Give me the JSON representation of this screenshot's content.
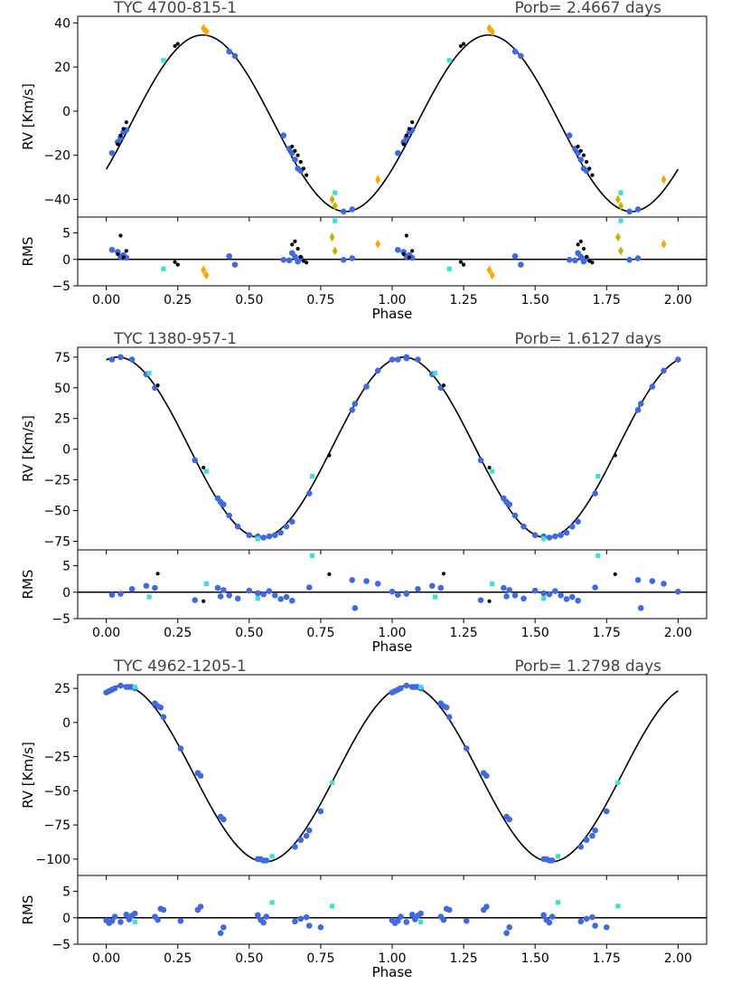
{
  "chart_data": [
    {
      "type": "scatter",
      "title": "TYC 4700-815-1",
      "period_label": "Porb= 2.4667 days",
      "xlabel": "Phase",
      "ylabel": "RV [Km/s]",
      "residual_ylabel": "RMS",
      "xlim": [
        -0.1,
        2.1
      ],
      "ylim": [
        -48,
        43
      ],
      "residual_ylim": [
        -5,
        8
      ],
      "xticks": [
        0.0,
        0.25,
        0.5,
        0.75,
        1.0,
        1.25,
        1.5,
        1.75,
        2.0
      ],
      "xtick_labels": [
        "0.00",
        "0.25",
        "0.50",
        "0.75",
        "1.00",
        "1.25",
        "1.50",
        "1.75",
        "2.00"
      ],
      "yticks": [
        40,
        20,
        0,
        -20,
        -40
      ],
      "ytick_labels": [
        "40",
        "20",
        "0",
        "−20",
        "−40"
      ],
      "residual_yticks": [
        5,
        0,
        -5
      ],
      "residual_ytick_labels": [
        "5",
        "0",
        "−5"
      ],
      "model": {
        "gamma": -5.5,
        "amplitude": 40,
        "phase_of_max": 0.337
      },
      "series": [
        {
          "name": "blue",
          "color": "#4169e1",
          "marker": "circle",
          "x": [
            0.02,
            0.04,
            0.05,
            0.06,
            0.07,
            0.43,
            0.45,
            0.62,
            0.64,
            0.65,
            0.66,
            0.67,
            0.68,
            0.83,
            0.86
          ],
          "y": [
            -19,
            -14,
            -12,
            -9.5,
            -8.5,
            27,
            25,
            -11,
            -17,
            -19,
            -22,
            -26,
            -27,
            -45.5,
            -44.5
          ]
        },
        {
          "name": "black",
          "color": "#000000",
          "marker": "dot",
          "x": [
            0.04,
            0.05,
            0.06,
            0.07,
            0.24,
            0.25,
            0.65,
            0.66,
            0.67,
            0.68,
            0.69,
            0.7
          ],
          "y": [
            -15,
            -11,
            -8,
            -5,
            29.5,
            30.5,
            -16,
            -18,
            -20,
            -23,
            -26,
            -29
          ]
        },
        {
          "name": "cyan",
          "color": "#40e0d0",
          "marker": "square",
          "x": [
            0.2,
            0.8
          ],
          "y": [
            23,
            -37
          ]
        },
        {
          "name": "orange",
          "color": "#ffa500",
          "marker": "diamond",
          "x": [
            0.34,
            0.35,
            0.95
          ],
          "y": [
            37.5,
            36,
            -31
          ]
        },
        {
          "name": "olive",
          "color": "#c8b400",
          "marker": "diamond",
          "x": [
            0.79,
            0.8
          ],
          "y": [
            -40,
            -43
          ]
        }
      ],
      "residuals": [
        {
          "name": "blue",
          "color": "#4169e1",
          "marker": "circle",
          "x": [
            0.02,
            0.04,
            0.05,
            0.06,
            0.07,
            0.43,
            0.45,
            0.62,
            0.64,
            0.65,
            0.66,
            0.67,
            0.68,
            0.83,
            0.86
          ],
          "y": [
            1.8,
            1.4,
            0.5,
            0.8,
            0.3,
            0.6,
            -1.0,
            -0.1,
            -0.2,
            1.2,
            0.5,
            -0.4,
            0.2,
            -0.1,
            0.2
          ]
        },
        {
          "name": "black",
          "color": "#000000",
          "marker": "dot",
          "x": [
            0.04,
            0.05,
            0.06,
            0.07,
            0.24,
            0.25,
            0.65,
            0.66,
            0.67,
            0.68,
            0.69,
            0.7
          ],
          "y": [
            1.0,
            4.5,
            0.4,
            1.6,
            -0.5,
            -1.0,
            2.8,
            3.4,
            2.0,
            0.5,
            -0.3,
            -0.6
          ]
        },
        {
          "name": "cyan",
          "color": "#40e0d0",
          "marker": "square",
          "x": [
            0.2,
            0.8
          ],
          "y": [
            -1.8,
            7.3
          ]
        },
        {
          "name": "orange",
          "color": "#ffa500",
          "marker": "diamond",
          "x": [
            0.34,
            0.35,
            0.95
          ],
          "y": [
            -2.0,
            -3.0,
            2.9
          ]
        },
        {
          "name": "olive",
          "color": "#c8b400",
          "marker": "diamond",
          "x": [
            0.79,
            0.8
          ],
          "y": [
            4.2,
            1.6
          ]
        }
      ]
    },
    {
      "type": "scatter",
      "title": "TYC 1380-957-1",
      "period_label": "Porb= 1.6127 days",
      "xlabel": "Phase",
      "ylabel": "RV [Km/s]",
      "residual_ylabel": "RMS",
      "xlim": [
        -0.1,
        2.1
      ],
      "ylim": [
        -82,
        83
      ],
      "residual_ylim": [
        -5,
        8
      ],
      "xticks": [
        0.0,
        0.25,
        0.5,
        0.75,
        1.0,
        1.25,
        1.5,
        1.75,
        2.0
      ],
      "xtick_labels": [
        "0.00",
        "0.25",
        "0.50",
        "0.75",
        "1.00",
        "1.25",
        "1.50",
        "1.75",
        "2.00"
      ],
      "yticks": [
        75,
        50,
        25,
        0,
        -25,
        -50,
        -75
      ],
      "ytick_labels": [
        "75",
        "50",
        "25",
        "0",
        "−25",
        "−50",
        "−75"
      ],
      "residual_yticks": [
        5,
        0,
        -5
      ],
      "residual_ytick_labels": [
        "5",
        "0",
        "−5"
      ],
      "model": {
        "gamma": 1.5,
        "amplitude": 73.5,
        "phase_of_max": 0.04
      },
      "series": [
        {
          "name": "blue",
          "color": "#4169e1",
          "marker": "circle",
          "x": [
            0.02,
            0.05,
            0.09,
            0.14,
            0.17,
            0.31,
            0.39,
            0.4,
            0.41,
            0.43,
            0.46,
            0.5,
            0.53,
            0.55,
            0.57,
            0.59,
            0.61,
            0.63,
            0.65,
            0.71,
            0.86,
            0.87,
            0.91,
            0.95,
            1.0,
            1.05
          ],
          "y": [
            73,
            75,
            73,
            61,
            50,
            -9,
            -40,
            -43,
            -45,
            -54,
            -63,
            -70,
            -71,
            -72,
            -71,
            -70,
            -68,
            -63,
            -59,
            -36,
            32,
            37,
            51,
            64,
            73,
            74
          ]
        },
        {
          "name": "black",
          "color": "#000000",
          "marker": "dot",
          "x": [
            0.18,
            0.34,
            0.78
          ],
          "y": [
            52,
            -15,
            -5
          ]
        },
        {
          "name": "cyan",
          "color": "#40e0d0",
          "marker": "square",
          "x": [
            0.15,
            0.35,
            0.53,
            0.72
          ],
          "y": [
            62,
            -18,
            -73,
            -22
          ]
        }
      ],
      "residuals": [
        {
          "name": "blue",
          "color": "#4169e1",
          "marker": "circle",
          "x": [
            0.02,
            0.05,
            0.09,
            0.14,
            0.17,
            0.31,
            0.39,
            0.4,
            0.41,
            0.43,
            0.46,
            0.5,
            0.53,
            0.55,
            0.57,
            0.59,
            0.61,
            0.63,
            0.65,
            0.71,
            0.86,
            0.87,
            0.91,
            0.95,
            1.0,
            1.05
          ],
          "y": [
            -0.5,
            -0.3,
            0.6,
            1.2,
            0.8,
            -1.5,
            0.8,
            -0.8,
            0.4,
            -0.6,
            -1.2,
            0.3,
            -0.2,
            -0.4,
            0.2,
            -0.6,
            -1.3,
            -0.9,
            -1.6,
            0.9,
            2.3,
            -3.0,
            2.1,
            1.6,
            0.1,
            -0.2
          ]
        },
        {
          "name": "black",
          "color": "#000000",
          "marker": "dot",
          "x": [
            0.18,
            0.34,
            0.78
          ],
          "y": [
            3.5,
            -1.7,
            3.4
          ]
        },
        {
          "name": "cyan",
          "color": "#40e0d0",
          "marker": "square",
          "x": [
            0.15,
            0.35,
            0.53,
            0.72
          ],
          "y": [
            -0.9,
            1.6,
            -1.2,
            6.9
          ]
        }
      ]
    },
    {
      "type": "scatter",
      "title": "TYC 4962-1205-1",
      "period_label": "Porb= 1.2798 days",
      "xlabel": "Phase",
      "ylabel": "RV [Km/s]",
      "residual_ylabel": "RMS",
      "xlim": [
        -0.1,
        2.1
      ],
      "ylim": [
        -112,
        35
      ],
      "residual_ylim": [
        -5,
        8
      ],
      "xticks": [
        0.0,
        0.25,
        0.5,
        0.75,
        1.0,
        1.25,
        1.5,
        1.75,
        2.0
      ],
      "xtick_labels": [
        "0.00",
        "0.25",
        "0.50",
        "0.75",
        "1.00",
        "1.25",
        "1.50",
        "1.75",
        "2.00"
      ],
      "yticks": [
        25,
        0,
        -25,
        -50,
        -75,
        -100
      ],
      "ytick_labels": [
        "25",
        "0",
        "−25",
        "−50",
        "−75",
        "−100"
      ],
      "residual_yticks": [
        5,
        0,
        -5
      ],
      "residual_ytick_labels": [
        "5",
        "0",
        "−5"
      ],
      "model": {
        "gamma": -37.5,
        "amplitude": 64.5,
        "phase_of_max": 0.055
      },
      "series": [
        {
          "name": "blue",
          "color": "#4169e1",
          "marker": "circle",
          "x": [
            0.0,
            0.01,
            0.02,
            0.03,
            0.05,
            0.07,
            0.08,
            0.09,
            0.1,
            0.17,
            0.18,
            0.19,
            0.2,
            0.26,
            0.32,
            0.33,
            0.4,
            0.41,
            0.53,
            0.54,
            0.55,
            0.56,
            0.66,
            0.68,
            0.7,
            0.71,
            0.75
          ],
          "y": [
            22,
            23,
            24,
            25,
            27,
            26,
            26,
            26,
            25,
            14,
            12,
            11,
            4,
            -19,
            -37,
            -39,
            -69,
            -71,
            -100,
            -100,
            -101,
            -101,
            -91,
            -86,
            -83,
            -79,
            -65
          ]
        },
        {
          "name": "cyan",
          "color": "#40e0d0",
          "marker": "square",
          "x": [
            0.1,
            0.58,
            0.79
          ],
          "y": [
            26,
            -98,
            -44
          ]
        }
      ],
      "residuals": [
        {
          "name": "blue",
          "color": "#4169e1",
          "marker": "circle",
          "x": [
            0.0,
            0.01,
            0.02,
            0.03,
            0.05,
            0.07,
            0.08,
            0.09,
            0.1,
            0.17,
            0.18,
            0.19,
            0.2,
            0.26,
            0.32,
            0.33,
            0.4,
            0.41,
            0.53,
            0.54,
            0.55,
            0.56,
            0.66,
            0.68,
            0.7,
            0.71,
            0.75
          ],
          "y": [
            -0.5,
            -1.0,
            -0.6,
            0.2,
            -0.8,
            0.6,
            -0.3,
            0.4,
            0.8,
            0.2,
            -0.4,
            1.7,
            1.5,
            -0.6,
            1.5,
            2.1,
            -2.9,
            -1.8,
            0.5,
            -0.4,
            -0.9,
            0.2,
            -0.7,
            -0.2,
            0.1,
            -1.5,
            -1.8
          ]
        },
        {
          "name": "cyan",
          "color": "#40e0d0",
          "marker": "square",
          "x": [
            0.1,
            0.58,
            0.79
          ],
          "y": [
            -0.8,
            2.9,
            2.2
          ]
        }
      ]
    }
  ]
}
